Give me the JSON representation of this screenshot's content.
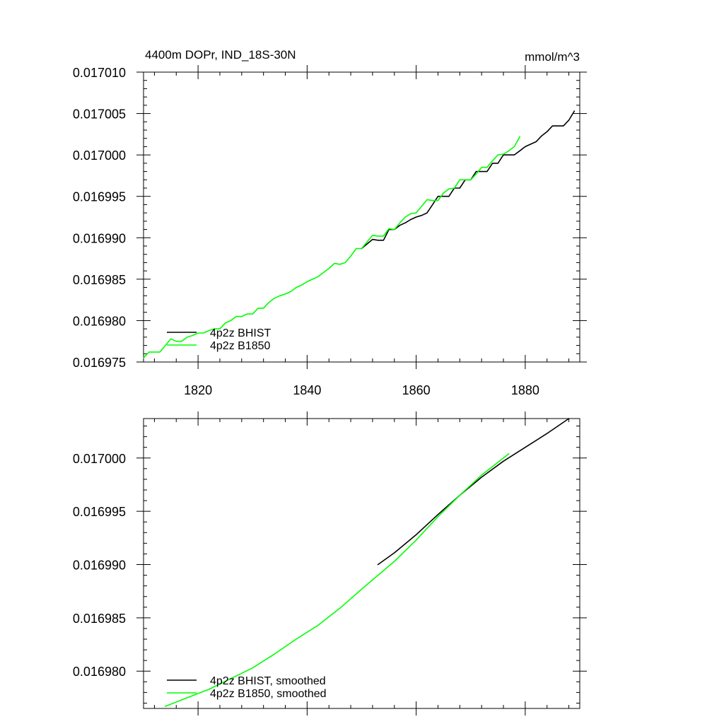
{
  "chart_data": [
    {
      "type": "line",
      "title": "4400m DOPr, IND_18S-30N",
      "units": "mmol/m^3",
      "xlabel": "",
      "ylabel": "",
      "xlim": [
        1810,
        1890
      ],
      "ylim": [
        0.016975,
        0.01701
      ],
      "xticks": [
        1820,
        1840,
        1860,
        1880
      ],
      "xtick_labels": [
        "1820",
        "1840",
        "1860",
        "1880"
      ],
      "yticks": [
        0.016975,
        0.01698,
        0.016985,
        0.01699,
        0.016995,
        0.017,
        0.017005,
        0.01701
      ],
      "ytick_labels": [
        "0.016975",
        "0.016980",
        "0.016985",
        "0.016990",
        "0.016995",
        "0.017000",
        "0.017005",
        "0.017010"
      ],
      "legend_position": "bottom-left",
      "series": [
        {
          "name": "4p2z BHIST",
          "color": "#000000",
          "x": [
            1850,
            1852,
            1853,
            1854,
            1855,
            1856,
            1857,
            1858,
            1859,
            1860,
            1861,
            1862,
            1863,
            1864,
            1865,
            1866,
            1867,
            1868,
            1869,
            1870,
            1871,
            1872,
            1873,
            1874,
            1875,
            1876,
            1877,
            1878,
            1879,
            1880,
            1881,
            1882,
            1883,
            1884,
            1885,
            1886,
            1887,
            1888,
            1889
          ],
          "y": [
            0.0169887,
            0.0169898,
            0.0169897,
            0.0169897,
            0.016991,
            0.016991,
            0.0169915,
            0.0169918,
            0.0169922,
            0.0169925,
            0.0169927,
            0.016993,
            0.016994,
            0.016995,
            0.016995,
            0.016995,
            0.016996,
            0.016996,
            0.016997,
            0.016997,
            0.016998,
            0.016998,
            0.016998,
            0.016999,
            0.016999,
            0.017,
            0.017,
            0.017,
            0.0170005,
            0.017001,
            0.0170013,
            0.0170016,
            0.0170023,
            0.0170028,
            0.0170035,
            0.0170035,
            0.0170035,
            0.0170042,
            0.0170053
          ]
        },
        {
          "name": "4p2z B1850",
          "color": "#00ff00",
          "x": [
            1810,
            1811,
            1812,
            1813,
            1814,
            1815,
            1816,
            1817,
            1818,
            1819,
            1820,
            1821,
            1822,
            1823,
            1824,
            1825,
            1826,
            1827,
            1828,
            1829,
            1830,
            1831,
            1832,
            1833,
            1834,
            1835,
            1836,
            1837,
            1838,
            1839,
            1840,
            1841,
            1842,
            1843,
            1844,
            1845,
            1846,
            1847,
            1848,
            1849,
            1850,
            1851,
            1852,
            1853,
            1854,
            1855,
            1856,
            1857,
            1858,
            1859,
            1860,
            1861,
            1862,
            1863,
            1864,
            1865,
            1866,
            1867,
            1868,
            1869,
            1870,
            1871,
            1872,
            1873,
            1874,
            1875,
            1876,
            1877,
            1878,
            1879
          ],
          "y": [
            0.0169755,
            0.0169762,
            0.0169762,
            0.0169762,
            0.016977,
            0.0169778,
            0.0169775,
            0.0169775,
            0.016978,
            0.0169782,
            0.0169785,
            0.0169785,
            0.0169788,
            0.016979,
            0.016979,
            0.0169797,
            0.01698,
            0.0169805,
            0.0169805,
            0.0169808,
            0.0169808,
            0.0169815,
            0.0169815,
            0.0169822,
            0.0169827,
            0.016983,
            0.0169832,
            0.0169835,
            0.016984,
            0.0169843,
            0.0169847,
            0.016985,
            0.0169853,
            0.0169858,
            0.0169863,
            0.0169869,
            0.0169868,
            0.016987,
            0.0169878,
            0.0169887,
            0.0169887,
            0.0169895,
            0.0169903,
            0.0169902,
            0.0169902,
            0.0169911,
            0.016991,
            0.0169918,
            0.0169925,
            0.0169929,
            0.016993,
            0.0169938,
            0.0169946,
            0.0169945,
            0.0169945,
            0.0169954,
            0.0169959,
            0.016996,
            0.016997,
            0.016997,
            0.016997,
            0.0169977,
            0.0169985,
            0.0169985,
            0.0169993,
            0.017,
            0.0170001,
            0.0170005,
            0.017001,
            0.0170022
          ]
        }
      ]
    },
    {
      "type": "line",
      "title": "",
      "xlabel": "",
      "ylabel": "",
      "xlim": [
        1810,
        1890
      ],
      "ylim": [
        0.0169765,
        0.0170037
      ],
      "xticks": [
        1820,
        1840,
        1860,
        1880
      ],
      "yticks": [
        0.01698,
        0.016985,
        0.01699,
        0.016995,
        0.017
      ],
      "ytick_labels": [
        "0.016980",
        "0.016985",
        "0.016990",
        "0.016995",
        "0.017000"
      ],
      "legend_position": "bottom-left",
      "series": [
        {
          "name": "4p2z BHIST, smoothed",
          "color": "#000000",
          "x": [
            1853,
            1856,
            1860,
            1864,
            1868,
            1872,
            1876,
            1880,
            1884,
            1888
          ],
          "y": [
            0.01699,
            0.0169911,
            0.0169928,
            0.0169947,
            0.0169965,
            0.0169982,
            0.0169997,
            0.017001,
            0.0170023,
            0.0170037
          ]
        },
        {
          "name": "4p2z B1850, smoothed",
          "color": "#00ff00",
          "x": [
            1814,
            1818,
            1822,
            1826,
            1830,
            1834,
            1838,
            1842,
            1846,
            1850,
            1853,
            1856,
            1860,
            1864,
            1868,
            1872,
            1877
          ],
          "y": [
            0.0169767,
            0.0169775,
            0.0169783,
            0.0169793,
            0.0169803,
            0.0169816,
            0.016983,
            0.0169843,
            0.0169859,
            0.0169877,
            0.016989,
            0.0169903,
            0.0169923,
            0.0169945,
            0.0169965,
            0.0169984,
            0.0170004
          ]
        }
      ]
    }
  ]
}
